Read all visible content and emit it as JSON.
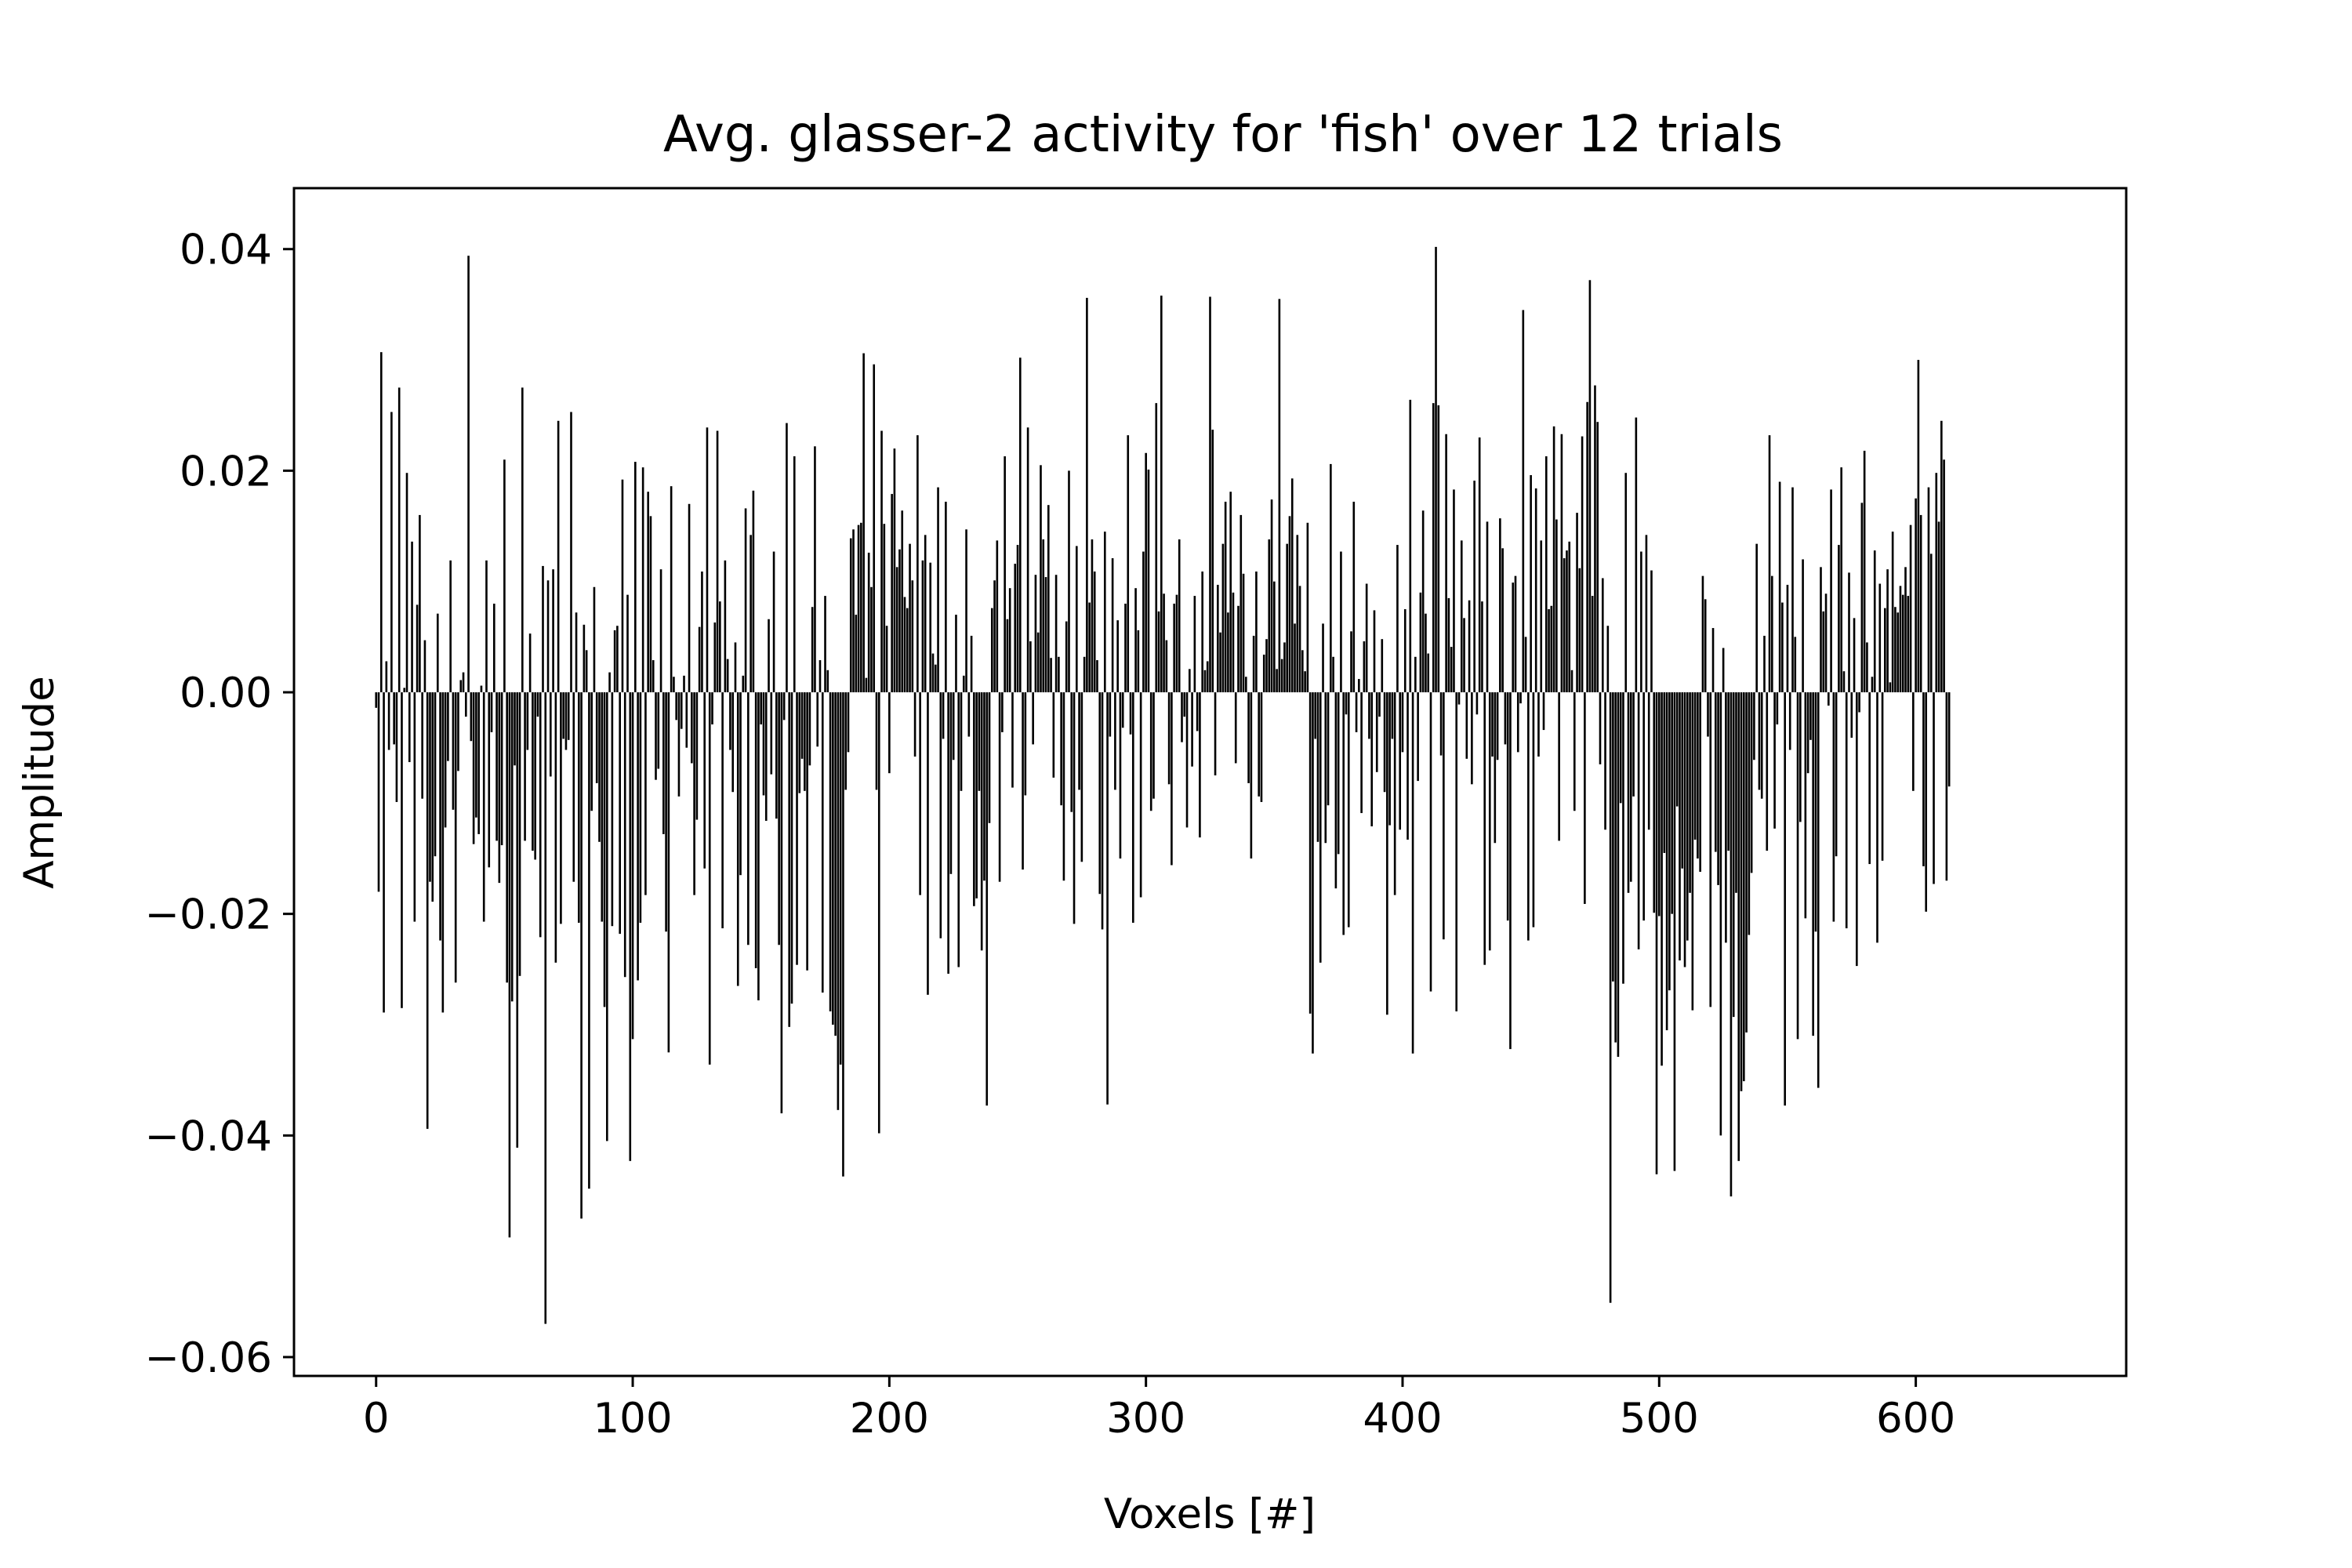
{
  "chart_data": {
    "type": "bar",
    "title": "Avg. glasser-2 activity for 'fish' over 12 trials",
    "xlabel": "Voxels [#]",
    "ylabel": "Amplitude",
    "xlim": [
      -32,
      682
    ],
    "ylim": [
      -0.0617,
      0.0455
    ],
    "xticks": [
      0,
      100,
      200,
      300,
      400,
      500,
      600
    ],
    "xtick_labels": [
      "0",
      "100",
      "200",
      "300",
      "400",
      "500",
      "600"
    ],
    "yticks": [
      -0.06,
      -0.04,
      -0.02,
      0.0,
      0.02,
      0.04
    ],
    "ytick_labels": [
      "−0.06",
      "−0.04",
      "−0.02",
      "0.00",
      "0.02",
      "0.04"
    ],
    "grid": false,
    "legend": false,
    "bar_color": "#000000",
    "n_voxels": 650,
    "values": [
      -0.0014,
      -0.018,
      0.0307,
      -0.0289,
      0.0028,
      -0.0052,
      0.0253,
      -0.0047,
      -0.0099,
      0.0275,
      -0.0285,
      0.0004,
      0.0198,
      -0.0063,
      0.0136,
      -0.0207,
      0.0079,
      0.016,
      -0.0096,
      0.0047,
      -0.0394,
      -0.0171,
      -0.0189,
      -0.0148,
      0.0071,
      -0.0224,
      -0.0289,
      -0.0122,
      -0.0062,
      0.0119,
      -0.0106,
      -0.0262,
      -0.0071,
      0.0011,
      0.0018,
      -0.0022,
      0.0394,
      -0.0044,
      -0.0137,
      -0.0113,
      -0.0128,
      0.0006,
      -0.0207,
      0.0119,
      -0.0158,
      -0.0036,
      0.008,
      -0.0134,
      -0.0172,
      -0.0138,
      0.021,
      -0.0262,
      -0.0492,
      -0.0279,
      -0.0066,
      -0.0411,
      -0.0256,
      0.0275,
      -0.0134,
      -0.0052,
      0.0053,
      -0.0143,
      -0.0151,
      -0.0022,
      -0.0221,
      0.0114,
      -0.057,
      0.0101,
      -0.0076,
      0.0111,
      -0.0244,
      0.0245,
      -0.0209,
      -0.0042,
      -0.0052,
      -0.0043,
      0.0253,
      -0.0171,
      0.0072,
      -0.0208,
      -0.0475,
      0.0061,
      0.0038,
      -0.0448,
      -0.0107,
      0.0095,
      -0.0082,
      -0.0135,
      -0.0207,
      -0.0284,
      -0.0405,
      0.0018,
      -0.0211,
      0.0056,
      0.006,
      -0.0218,
      0.0192,
      -0.0257,
      0.0088,
      -0.0423,
      -0.0313,
      0.0208,
      -0.026,
      -0.0208,
      0.0203,
      -0.0183,
      0.0181,
      0.0159,
      0.0029,
      -0.0079,
      -0.0069,
      0.0111,
      -0.0128,
      -0.0216,
      -0.0325,
      0.0186,
      0.0014,
      -0.0025,
      -0.0094,
      -0.0033,
      0.0015,
      -0.005,
      0.017,
      -0.0064,
      -0.0183,
      -0.0115,
      0.0059,
      0.0109,
      -0.0159,
      0.0239,
      -0.0336,
      -0.0029,
      0.0063,
      0.0236,
      0.0082,
      -0.0213,
      0.0119,
      0.003,
      -0.0052,
      -0.009,
      0.0045,
      -0.0265,
      -0.0165,
      0.0015,
      0.0166,
      -0.0228,
      0.0142,
      0.0182,
      -0.0249,
      -0.0278,
      -0.0029,
      -0.0093,
      -0.0116,
      0.0066,
      -0.0074,
      0.0127,
      -0.0114,
      -0.0228,
      -0.038,
      -0.0025,
      0.0243,
      -0.0302,
      -0.0281,
      0.0213,
      -0.0246,
      -0.0091,
      -0.006,
      -0.0089,
      -0.0251,
      -0.0066,
      0.0077,
      0.0222,
      -0.0049,
      0.0029,
      -0.0271,
      0.0087,
      0.002,
      -0.0288,
      -0.03,
      -0.031,
      -0.0377,
      -0.0336,
      -0.0437,
      -0.0088,
      -0.0054,
      0.0139,
      0.0147,
      0.007,
      0.0151,
      0.0153,
      0.0306,
      0.0013,
      0.0126,
      0.0095,
      0.0296,
      -0.0088,
      -0.0398,
      0.0236,
      0.0152,
      0.006,
      -0.0073,
      0.0179,
      0.022,
      0.0113,
      0.0129,
      0.0164,
      0.0086,
      0.0076,
      0.0134,
      0.0101,
      -0.0058,
      0.0232,
      -0.0183,
      0.0119,
      0.0142,
      -0.0273,
      0.0117,
      0.0035,
      0.0025,
      0.0185,
      -0.0222,
      -0.0042,
      0.0172,
      -0.0254,
      -0.0164,
      -0.0061,
      0.007,
      -0.0248,
      -0.0089,
      0.0015,
      0.0147,
      -0.004,
      0.0051,
      -0.0193,
      -0.0186,
      -0.0089,
      -0.0233,
      -0.017,
      -0.0373,
      -0.0118,
      0.0076,
      0.0101,
      0.0137,
      -0.0171,
      -0.0036,
      0.0213,
      0.0066,
      0.0094,
      -0.0086,
      0.0116,
      0.0133,
      0.0302,
      -0.016,
      -0.0093,
      0.0239,
      0.0046,
      -0.0047,
      0.0106,
      0.0054,
      0.0205,
      0.0138,
      0.0104,
      0.0169,
      0.0031,
      -0.0077,
      0.0106,
      0.0032,
      -0.0102,
      -0.017,
      0.0064,
      0.02,
      -0.0108,
      -0.0209,
      0.0132,
      -0.0088,
      -0.0153,
      0.0032,
      0.0356,
      0.0081,
      0.0138,
      0.0109,
      0.0029,
      -0.0182,
      -0.0214,
      0.0145,
      -0.0372,
      -0.004,
      0.0121,
      -0.0088,
      0.0065,
      -0.015,
      -0.0032,
      0.008,
      0.0232,
      -0.0038,
      -0.0208,
      0.0094,
      0.0056,
      -0.0185,
      0.0127,
      0.0216,
      0.0201,
      -0.0107,
      -0.0096,
      0.0261,
      0.0073,
      0.0358,
      0.0089,
      0.0047,
      -0.0083,
      -0.0156,
      0.008,
      0.0088,
      0.0138,
      -0.0045,
      -0.0022,
      -0.0122,
      0.0021,
      -0.0067,
      0.0087,
      -0.0035,
      -0.0131,
      0.0109,
      0.002,
      0.0028,
      0.0357,
      0.0237,
      -0.0075,
      0.0097,
      0.0054,
      0.0134,
      0.0172,
      0.0072,
      0.0181,
      0.009,
      -0.0064,
      0.0078,
      0.016,
      0.0107,
      0.0014,
      -0.0082,
      -0.015,
      0.0051,
      0.0109,
      -0.0094,
      -0.0099,
      0.0034,
      0.0048,
      0.0138,
      0.0174,
      0.01,
      0.0021,
      0.0355,
      0.003,
      0.0045,
      0.0134,
      0.0159,
      0.0193,
      0.0062,
      0.0142,
      0.0096,
      0.0038,
      0.0019,
      0.0153,
      -0.029,
      -0.0326,
      -0.0042,
      -0.0135,
      -0.0244,
      0.0062,
      -0.0136,
      -0.0102,
      0.0206,
      0.0032,
      -0.0177,
      -0.0146,
      0.0127,
      -0.0219,
      -0.002,
      -0.0212,
      0.0055,
      0.0172,
      -0.0036,
      0.0012,
      -0.0109,
      0.0046,
      0.0098,
      -0.0042,
      -0.0121,
      0.0074,
      -0.0072,
      -0.0022,
      0.0048,
      -0.009,
      -0.0291,
      -0.012,
      -0.0042,
      -0.0183,
      0.0133,
      -0.0124,
      -0.0054,
      0.0075,
      -0.0133,
      0.0264,
      -0.0326,
      0.0032,
      -0.008,
      0.009,
      0.0164,
      0.0071,
      0.0035,
      -0.027,
      0.0261,
      0.0402,
      0.0259,
      -0.0057,
      -0.0223,
      0.0233,
      0.0085,
      0.0041,
      0.0183,
      -0.0288,
      -0.0011,
      0.0137,
      0.0067,
      -0.006,
      0.0083,
      -0.0083,
      0.0191,
      -0.002,
      0.023,
      0.0082,
      -0.0246,
      0.0154,
      -0.0233,
      -0.0058,
      -0.0136,
      -0.0061,
      0.0157,
      0.013,
      -0.0047,
      -0.0206,
      -0.0322,
      0.0099,
      0.0105,
      -0.0054,
      -0.001,
      0.0345,
      0.005,
      -0.0224,
      0.0196,
      -0.0212,
      0.0184,
      -0.0058,
      0.0137,
      -0.0034,
      0.0213,
      0.0075,
      0.0078,
      0.024,
      0.0156,
      -0.0134,
      0.0233,
      0.0121,
      0.0128,
      0.0136,
      0.002,
      -0.0107,
      0.0162,
      0.0112,
      0.0231,
      -0.0191,
      0.0262,
      0.0372,
      0.0087,
      0.0277,
      0.0244,
      -0.0065,
      0.0103,
      -0.0124,
      0.006,
      -0.0551,
      -0.0261,
      -0.0316,
      -0.0329,
      -0.01,
      -0.0263,
      0.0198,
      -0.0181,
      -0.0171,
      -0.0094,
      0.0248,
      -0.0232,
      0.0127,
      -0.0206,
      0.0142,
      -0.0124,
      0.011,
      -0.0199,
      -0.0435,
      -0.0202,
      -0.0337,
      -0.0145,
      -0.0305,
      -0.0269,
      -0.02,
      -0.0432,
      -0.0103,
      -0.0242,
      -0.0159,
      -0.0248,
      -0.0224,
      -0.0181,
      -0.0287,
      -0.0133,
      -0.015,
      -0.0162,
      0.0105,
      0.0084,
      -0.004,
      -0.0284,
      0.0058,
      -0.0144,
      -0.0174,
      -0.04,
      0.004,
      -0.0226,
      -0.0143,
      -0.0455,
      -0.0293,
      -0.0181,
      -0.0423,
      -0.036,
      -0.0351,
      -0.0307,
      -0.0219,
      -0.0163,
      -0.0061,
      0.0134,
      -0.0088,
      -0.0096,
      0.0051,
      -0.0143,
      0.0232,
      0.0105,
      -0.0123,
      -0.0029,
      0.019,
      0.0081,
      -0.0373,
      0.0097,
      -0.0052,
      0.0185,
      0.005,
      -0.0313,
      -0.0117,
      0.012,
      -0.0204,
      -0.0073,
      -0.0043,
      -0.031,
      -0.0216,
      -0.0357,
      0.0113,
      0.0073,
      0.0089,
      -0.0012,
      0.0183,
      -0.0207,
      -0.0148,
      0.0133,
      0.0203,
      0.0019,
      -0.0213,
      0.0108,
      -0.0041,
      0.0067,
      -0.0247,
      -0.0018,
      0.0171,
      0.0218,
      0.0045,
      -0.0155,
      0.0014,
      0.0128,
      -0.0226,
      0.0098,
      -0.0152,
      0.0076,
      0.0111,
      0.0009,
      0.0145,
      0.0077,
      0.0072,
      0.0096,
      0.0088,
      0.0113,
      0.0087,
      0.0151,
      -0.0089,
      0.0175,
      0.03,
      0.016,
      -0.0157,
      -0.0198,
      0.0185,
      0.0125,
      -0.0173,
      0.0198,
      0.0154,
      0.0245,
      0.021,
      -0.017,
      -0.0085
    ]
  }
}
